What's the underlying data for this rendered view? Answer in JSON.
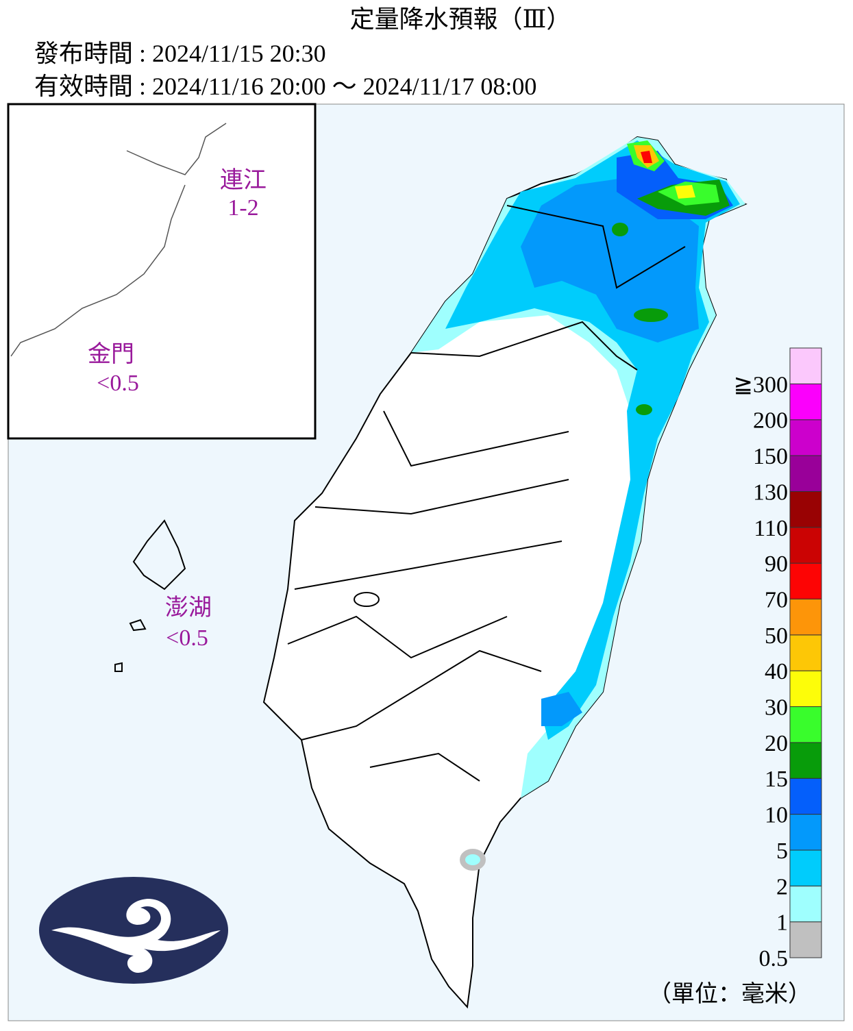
{
  "header": {
    "title": "定量降水預報（Ⅲ）",
    "issued": "發布時間 : 2024/11/15 20:30",
    "valid": "有效時間 : 2024/11/16 20:00 ～ 2024/11/17 08:00"
  },
  "regions": [
    {
      "name": "連江",
      "amount": "1-2"
    },
    {
      "name": "金門",
      "amount": "<0.5"
    },
    {
      "name": "澎湖",
      "amount": "<0.5"
    }
  ],
  "legend": {
    "levels": [
      0.5,
      1,
      2,
      5,
      10,
      15,
      20,
      30,
      40,
      50,
      70,
      90,
      110,
      130,
      150,
      200,
      {
        "value": 300,
        "label": "≧300"
      }
    ],
    "colors": [
      "#c0c0c0",
      "#9ffffe",
      "#00ccfc",
      "#0399fb",
      "#045ffb",
      "#089c0a",
      "#39fd2c",
      "#fdfd09",
      "#fdc706",
      "#fd9509",
      "#fd0404",
      "#cb0303",
      "#990203",
      "#990099",
      "#cc00cc",
      "#fb00fc",
      "#fbc8fc"
    ],
    "unit": "（單位：毫米）"
  }
}
